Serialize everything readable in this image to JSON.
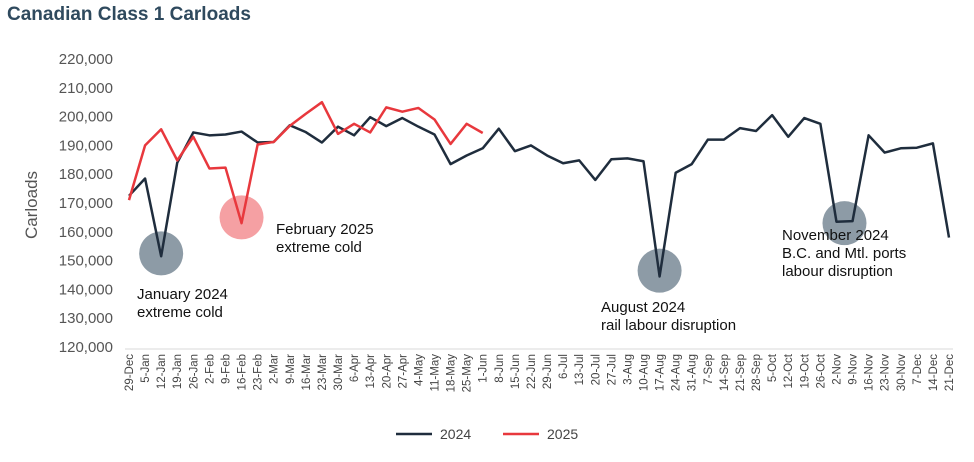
{
  "chart_data": {
    "type": "line",
    "title": "Canadian Class 1 Carloads",
    "ylabel": "Carloads",
    "ylim": [
      120000,
      220000
    ],
    "y_ticks": [
      "120,000",
      "130,000",
      "140,000",
      "150,000",
      "160,000",
      "170,000",
      "180,000",
      "190,000",
      "200,000",
      "210,000",
      "220,000"
    ],
    "x": [
      "29-Dec",
      "5-Jan",
      "12-Jan",
      "19-Jan",
      "26-Jan",
      "2-Feb",
      "9-Feb",
      "16-Feb",
      "23-Feb",
      "2-Mar",
      "9-Mar",
      "16-Mar",
      "23-Mar",
      "30-Mar",
      "6-Apr",
      "13-Apr",
      "20-Apr",
      "27-Apr",
      "4-May",
      "11-May",
      "18-May",
      "25-May",
      "1-Jun",
      "8-Jun",
      "15-Jun",
      "22-Jun",
      "29-Jun",
      "6-Jul",
      "13-Jul",
      "20-Jul",
      "27-Jul",
      "3-Aug",
      "10-Aug",
      "17-Aug",
      "24-Aug",
      "31-Aug",
      "7-Sep",
      "14-Sep",
      "21-Sep",
      "28-Sep",
      "5-Oct",
      "12-Oct",
      "19-Oct",
      "26-Oct",
      "2-Nov",
      "9-Nov",
      "16-Nov",
      "23-Nov",
      "30-Nov",
      "7-Dec",
      "14-Dec",
      "21-Dec"
    ],
    "grid": false,
    "legend_position": "bottom",
    "series": [
      {
        "name": "2024",
        "color": "#1f2d3d",
        "values": [
          172500,
          178500,
          151500,
          184000,
          194500,
          193500,
          193800,
          194800,
          191000,
          191200,
          197000,
          194600,
          191000,
          196500,
          193500,
          199800,
          196700,
          199500,
          196500,
          193800,
          183500,
          186500,
          189000,
          195800,
          188000,
          190000,
          186500,
          183800,
          184800,
          178000,
          185200,
          185500,
          184500,
          144500,
          180500,
          183500,
          192000,
          192000,
          196000,
          195000,
          200500,
          193000,
          199500,
          197500,
          163500,
          163700,
          193500,
          187500,
          189000,
          189200,
          190700,
          158000
        ]
      },
      {
        "name": "2025",
        "color": "#e8383d",
        "values": [
          171000,
          190000,
          195600,
          184800,
          193000,
          182000,
          182300,
          163000,
          190300,
          191200,
          196800,
          201000,
          205000,
          194000,
          197500,
          194500,
          203200,
          201700,
          203000,
          199000,
          190500,
          197500,
          194300,
          null,
          null,
          null,
          null,
          null,
          null,
          null,
          null,
          null,
          null,
          null,
          null,
          null,
          null,
          null,
          null,
          null,
          null,
          null,
          null,
          null,
          null,
          null,
          null,
          null,
          null,
          null,
          null,
          null
        ]
      }
    ],
    "annotations": [
      {
        "lines": [
          "January 2024",
          "extreme cold"
        ],
        "x_index": 2,
        "y": 152500,
        "color": "#8d9ba6"
      },
      {
        "lines": [
          "February 2025",
          "extreme cold"
        ],
        "x_index": 7,
        "y": 165000,
        "color": "#f5a0a3"
      },
      {
        "lines": [
          "August 2024",
          "rail labour disruption"
        ],
        "x_index": 33,
        "y": 146500,
        "color": "#8d9ba6"
      },
      {
        "lines": [
          "November 2024",
          "B.C. and Mtl. ports",
          "labour disruption"
        ],
        "x_index": 44.5,
        "y": 163000,
        "color": "#8d9ba6"
      }
    ]
  }
}
